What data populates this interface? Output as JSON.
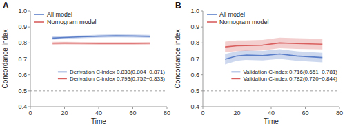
{
  "chart_data": [
    {
      "type": "line",
      "title": "A",
      "x_label": "Time",
      "y_label": "Concordance index",
      "x": [
        13,
        20,
        30,
        40,
        50,
        60,
        70
      ],
      "series": [
        {
          "name": "All model",
          "color": "#5b7ec9",
          "values": [
            0.83,
            0.834,
            0.838,
            0.842,
            0.844,
            0.843,
            0.841
          ],
          "ci_upper": [
            0.84,
            0.843,
            0.847,
            0.851,
            0.853,
            0.852,
            0.85
          ],
          "ci_lower": [
            0.82,
            0.825,
            0.829,
            0.833,
            0.835,
            0.834,
            0.832
          ]
        },
        {
          "name": "Nomogram model",
          "color": "#d95f5f",
          "values": [
            0.798,
            0.799,
            0.798,
            0.797,
            0.797,
            0.797,
            0.798
          ],
          "ci_upper": [
            0.807,
            0.807,
            0.806,
            0.805,
            0.805,
            0.805,
            0.806
          ],
          "ci_lower": [
            0.789,
            0.791,
            0.79,
            0.789,
            0.789,
            0.789,
            0.79
          ]
        }
      ],
      "annotations": [
        {
          "text": "Derivation C-index 0.838(0.804~0.871)",
          "color": "#5b7ec9"
        },
        {
          "text": "Derivation C-index 0.793(0.752~0.833)",
          "color": "#d95f5f"
        }
      ],
      "reference_y": 0.5,
      "xlim": [
        0,
        80
      ],
      "xticks": [
        0,
        20,
        40,
        60,
        80
      ],
      "ylim": [
        0.4,
        1.0
      ],
      "yticks": [
        0.4,
        0.5,
        0.6,
        0.7,
        0.8,
        0.9,
        {
          "value": 1.0,
          "label": "1.0"
        }
      ],
      "grid": false,
      "legend": "upper left"
    },
    {
      "type": "line",
      "title": "B",
      "x_label": "Time",
      "y_label": "Concordance index",
      "x": [
        13,
        20,
        25,
        35,
        45,
        55,
        70
      ],
      "series": [
        {
          "name": "All model",
          "color": "#5b7ec9",
          "values": [
            0.698,
            0.718,
            0.723,
            0.72,
            0.73,
            0.718,
            0.708
          ],
          "ci_upper": [
            0.73,
            0.748,
            0.753,
            0.75,
            0.76,
            0.748,
            0.738
          ],
          "ci_lower": [
            0.666,
            0.688,
            0.693,
            0.69,
            0.7,
            0.688,
            0.678
          ]
        },
        {
          "name": "Nomogram model",
          "color": "#d95f5f",
          "values": [
            0.775,
            0.782,
            0.783,
            0.786,
            0.8,
            0.796,
            0.792
          ],
          "ci_upper": [
            0.808,
            0.815,
            0.816,
            0.819,
            0.833,
            0.829,
            0.825
          ],
          "ci_lower": [
            0.742,
            0.749,
            0.75,
            0.753,
            0.767,
            0.763,
            0.759
          ]
        }
      ],
      "annotations": [
        {
          "text": "Validation C-index 0.716(0.651~0.781)",
          "color": "#5b7ec9"
        },
        {
          "text": "Validation C-index 0.782(0.720~0.844)",
          "color": "#d95f5f"
        }
      ],
      "reference_y": 0.5,
      "xlim": [
        0,
        80
      ],
      "xticks": [
        0,
        20,
        40,
        60,
        80
      ],
      "ylim": [
        0.4,
        1.0
      ],
      "yticks": [
        0.4,
        0.5,
        0.6,
        0.7,
        0.8,
        0.9,
        {
          "value": 1.0,
          "label": "1.0"
        }
      ],
      "grid": false,
      "legend": "upper left"
    }
  ]
}
